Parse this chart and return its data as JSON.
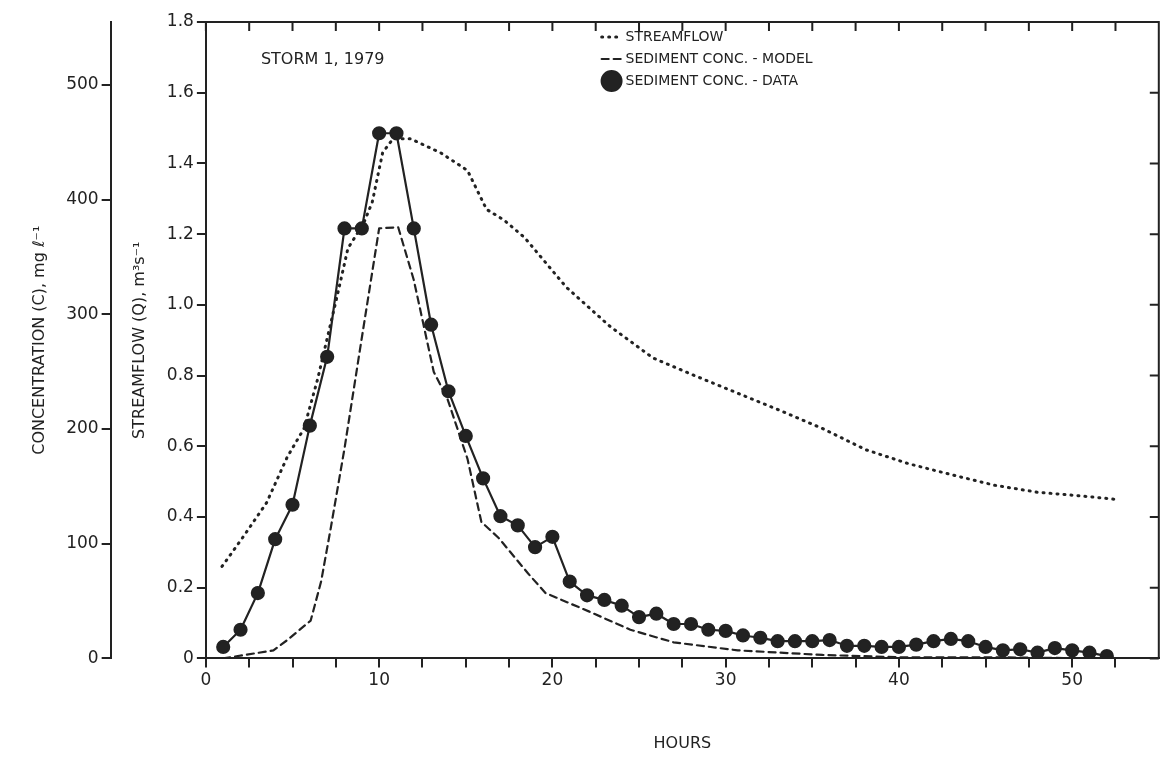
{
  "chart_data": {
    "type": "line",
    "title": "STORM 1, 1979",
    "xlabel": "HOURS",
    "ylabel": "STREAMFLOW (Q), m³s⁻¹",
    "y2label": "CONCENTRATION (C), mg ℓ⁻¹",
    "xlim": [
      0,
      55
    ],
    "xticks": [
      0,
      {
        "value": 2.5,
        "label": null
      },
      {
        "value": 5,
        "label": null
      },
      {
        "value": 7.5,
        "label": null
      },
      10,
      {
        "value": 12.5,
        "label": null
      },
      {
        "value": 15,
        "label": null
      },
      {
        "value": 17.5,
        "label": null
      },
      20,
      {
        "value": 22.5,
        "label": null
      },
      {
        "value": 25,
        "label": null
      },
      {
        "value": 27.5,
        "label": null
      },
      30,
      {
        "value": 32.5,
        "label": null
      },
      {
        "value": 35,
        "label": null
      },
      {
        "value": 37.5,
        "label": null
      },
      40,
      {
        "value": 42.5,
        "label": null
      },
      {
        "value": 45,
        "label": null
      },
      {
        "value": 47.5,
        "label": null
      },
      50,
      {
        "value": 52.5,
        "label": null
      }
    ],
    "ylim": [
      0,
      1.8
    ],
    "yticks": [
      0,
      0.2,
      0.4,
      0.6,
      0.8,
      {
        "value": 1,
        "label": "1.0"
      },
      1.2,
      1.4,
      1.6,
      1.8
    ],
    "y2lim": [
      0,
      555
    ],
    "y2ticks": [
      0,
      100,
      200,
      300,
      400,
      500
    ],
    "grid": false,
    "legend": "top right",
    "series": [
      {
        "name": "STREAMFLOW",
        "color": "#222222",
        "line_style": "dotted",
        "marker": "none",
        "x": [
          0.93,
          2.1,
          3.5,
          4.7,
          5.66,
          6.45,
          7.6,
          8.2,
          9.1,
          9.6,
          10.2,
          10.8,
          11.8,
          13.55,
          15.1,
          15.8,
          16.2,
          17.2,
          18.4,
          20.8,
          23.3,
          25.8,
          28.2,
          30.7,
          33.2,
          35.6,
          38.1,
          40.6,
          43.0,
          45.5,
          48.0,
          50.4,
          52.5
        ],
        "values": [
          0.26,
          0.34,
          0.44,
          0.57,
          0.65,
          0.79,
          1.03,
          1.16,
          1.23,
          1.29,
          1.43,
          1.47,
          1.47,
          1.43,
          1.38,
          1.31,
          1.27,
          1.24,
          1.19,
          1.05,
          0.94,
          0.85,
          0.8,
          0.75,
          0.7,
          0.65,
          0.59,
          0.55,
          0.52,
          0.49,
          0.47,
          0.46,
          0.45
        ]
      },
      {
        "name": "SEDIMENT CONC. - MODEL",
        "color": "#222222",
        "line_style": "dashed",
        "marker": "none",
        "axis": "y2",
        "x": [
          1,
          3.9,
          4.7,
          6.05,
          6.65,
          7.2,
          8.0,
          8.9,
          10.0,
          11.1,
          12,
          13.15,
          13.95,
          15.1,
          15.9,
          16.9,
          18.6,
          19.6,
          22.1,
          24.5,
          27,
          30.7,
          35.6,
          40,
          45,
          52
        ],
        "values": [
          0,
          7,
          16,
          33,
          67,
          113,
          183,
          270,
          375,
          376,
          330,
          250,
          226,
          174,
          119,
          105,
          74,
          57,
          41,
          25,
          14,
          7,
          3,
          1,
          1,
          0
        ]
      },
      {
        "name": "SEDIMENT CONC. - DATA",
        "color": "#222222",
        "line_style": "solid",
        "marker": "circle",
        "axis": "y2",
        "x": [
          1,
          2,
          3,
          4,
          5,
          6,
          7,
          8,
          9,
          10,
          11,
          12,
          13,
          14,
          15,
          16,
          17,
          18,
          19,
          20,
          21,
          22,
          23,
          24,
          25,
          26,
          27,
          28,
          29,
          30,
          31,
          32,
          33,
          34,
          35,
          36,
          37,
          38,
          39,
          40,
          41,
          42,
          43,
          44,
          45,
          46,
          47,
          48,
          49,
          50,
          51,
          52
        ],
        "values": [
          10,
          25,
          57,
          104,
          134,
          203,
          263,
          375,
          375,
          458,
          458,
          375,
          291,
          233,
          194,
          157,
          124,
          116,
          97,
          106,
          67,
          55,
          51,
          46,
          36,
          39,
          30,
          30,
          25,
          24,
          20,
          18,
          15,
          15,
          15,
          16,
          11,
          11,
          10,
          10,
          12,
          15,
          17,
          15,
          10,
          7,
          8,
          5,
          9,
          7,
          5,
          2
        ]
      }
    ]
  }
}
